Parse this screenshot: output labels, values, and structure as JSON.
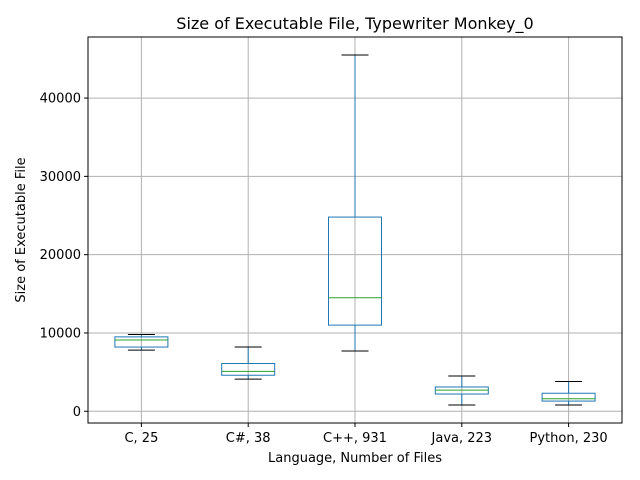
{
  "chart_data": {
    "type": "box",
    "title": "Size of Executable File, Typewriter Monkey_0",
    "xlabel": "Language, Number of Files",
    "ylabel": "Size of Executable File",
    "ylim": [
      -1500,
      47800
    ],
    "yticks": [
      0,
      10000,
      20000,
      30000,
      40000
    ],
    "grid": true,
    "categories": [
      "C, 25",
      "C#, 38",
      "C++, 931",
      "Java, 223",
      "Python, 230"
    ],
    "boxes": [
      {
        "whisker_low": 7800,
        "q1": 8200,
        "median": 9100,
        "q3": 9500,
        "whisker_high": 9800
      },
      {
        "whisker_low": 4100,
        "q1": 4600,
        "median": 5100,
        "q3": 6100,
        "whisker_high": 8200
      },
      {
        "whisker_low": 7700,
        "q1": 11000,
        "median": 14500,
        "q3": 24800,
        "whisker_high": 45500
      },
      {
        "whisker_low": 800,
        "q1": 2200,
        "median": 2700,
        "q3": 3100,
        "whisker_high": 4500
      },
      {
        "whisker_low": 800,
        "q1": 1300,
        "median": 1600,
        "q3": 2300,
        "whisker_high": 3800
      }
    ],
    "colors": {
      "box": "#1f77b4",
      "median": "#2ca02c",
      "whisker_cap": "#000000",
      "grid": "#b0b0b0",
      "axes": "#000000"
    }
  }
}
